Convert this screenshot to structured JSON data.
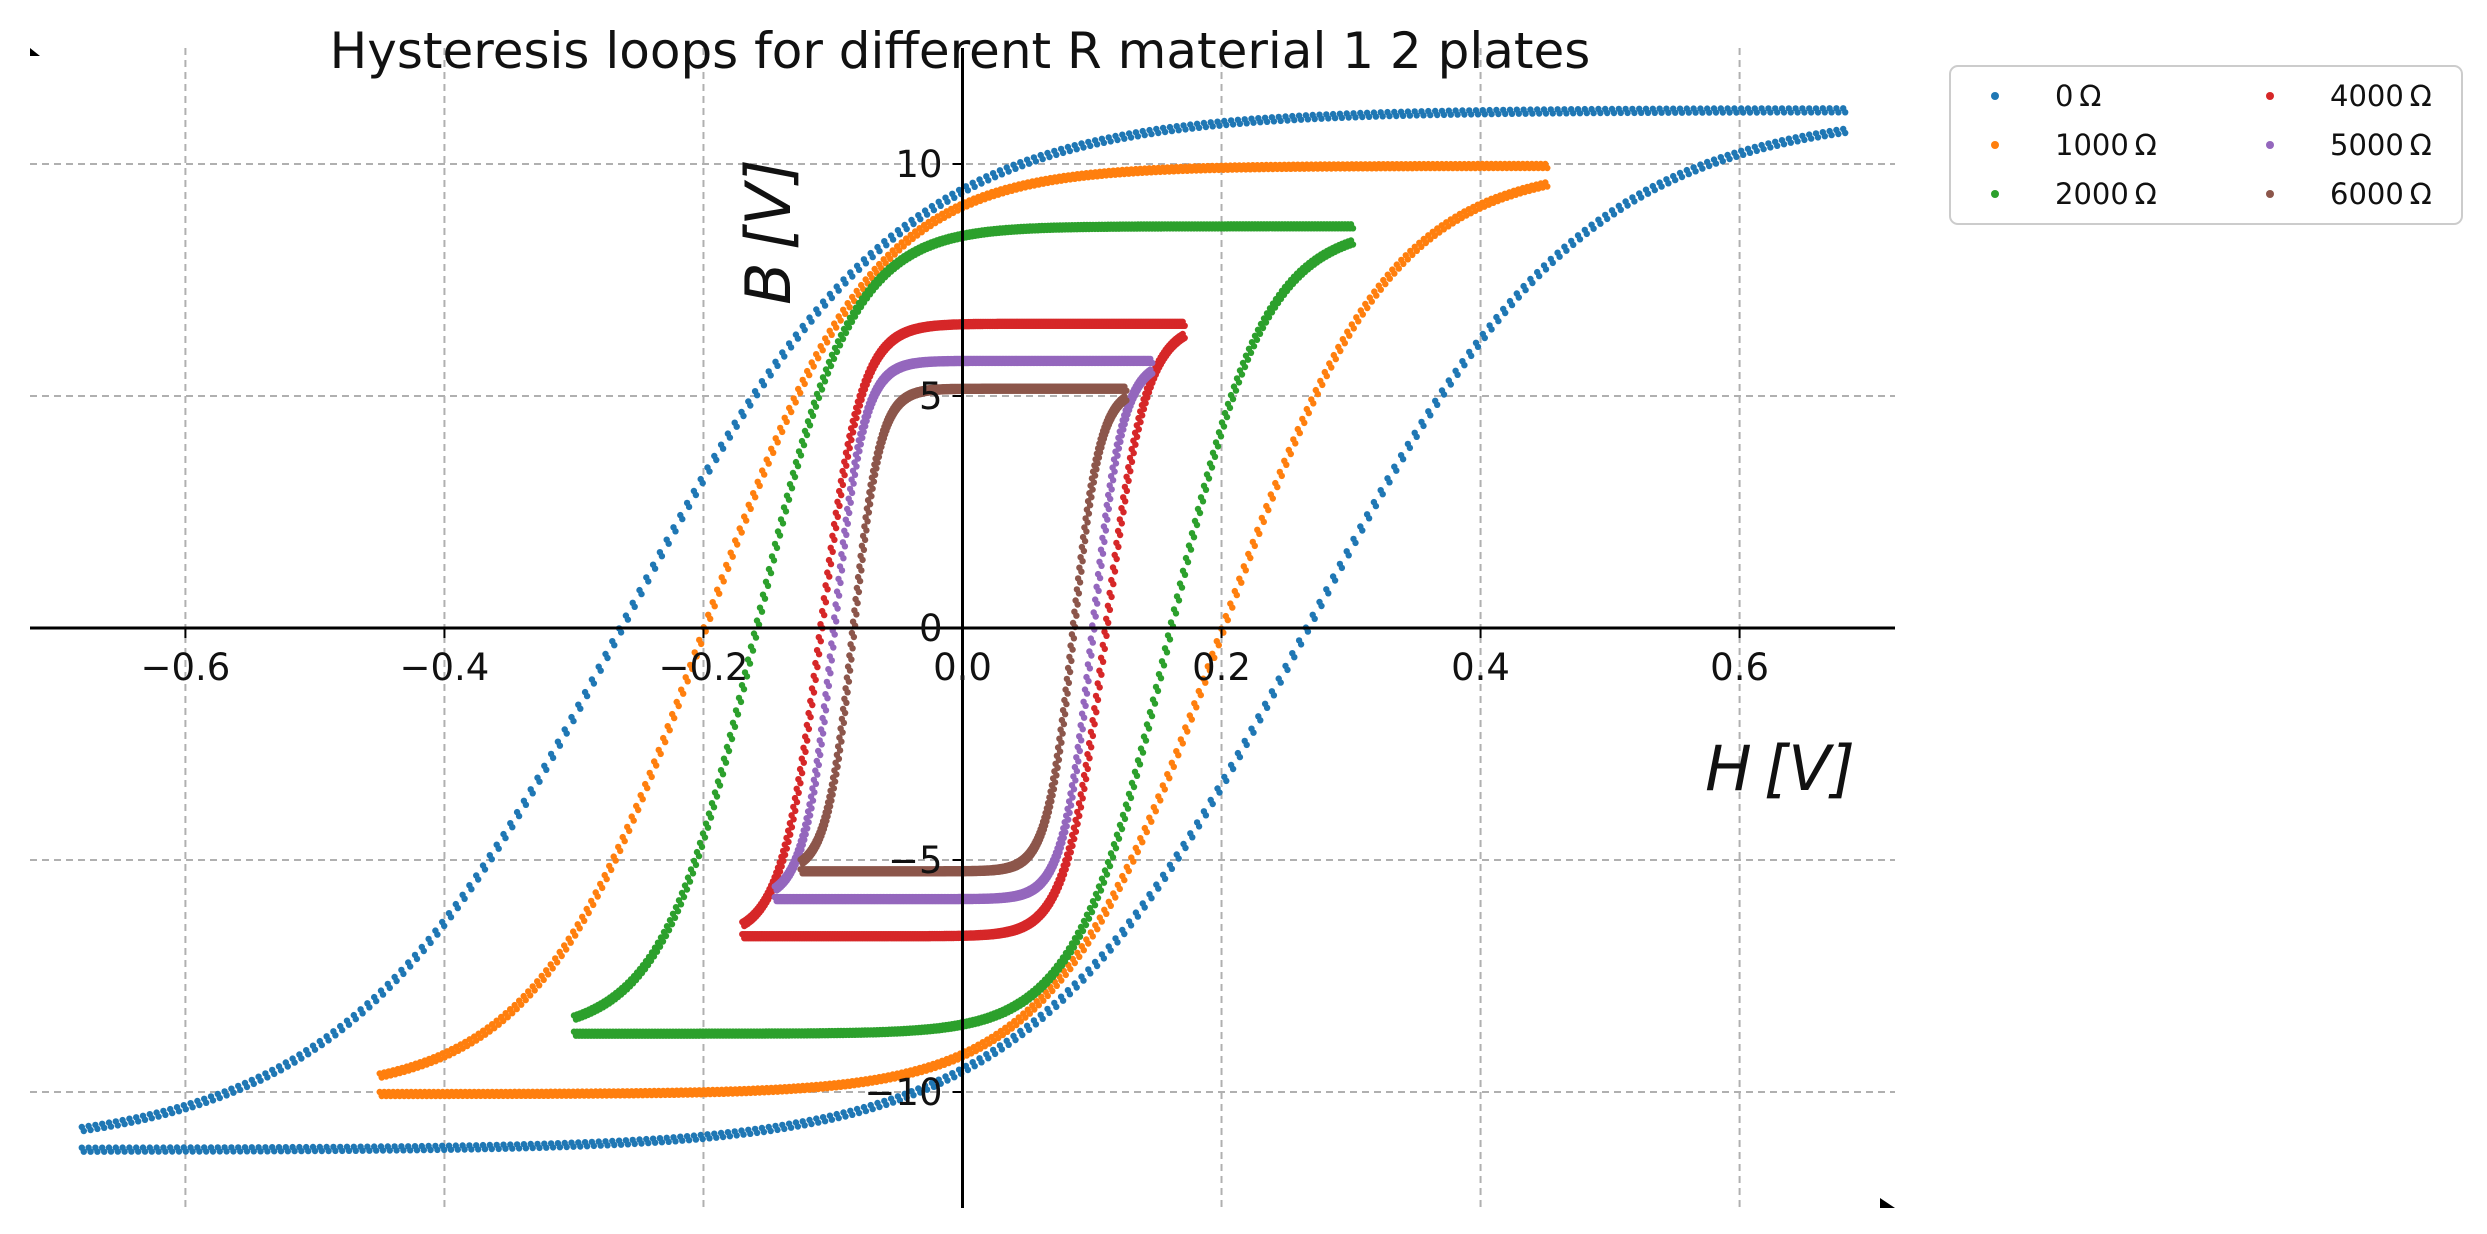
{
  "chart_data": {
    "type": "scatter",
    "title": "Hysteresis loops for different R material 1 2 plates",
    "xlabel": "H [V]",
    "ylabel": "B [V]",
    "xlim": [
      -0.72,
      0.72
    ],
    "ylim": [
      -12.5,
      12.5
    ],
    "xticks": [
      -0.6,
      -0.4,
      -0.2,
      0.0,
      0.2,
      0.4,
      0.6
    ],
    "xtick_labels": [
      "−0.6",
      "−0.4",
      "−0.2",
      "0.0",
      "0.2",
      "0.4",
      "0.6"
    ],
    "yticks": [
      -10,
      -5,
      0,
      5,
      10
    ],
    "ytick_labels": [
      "−10",
      "−5",
      "0",
      "5",
      "10"
    ],
    "grid": true,
    "legend_position": "outside-top-right",
    "legend_columns": 2,
    "series": [
      {
        "name": "0 Ω",
        "color": "#1f77b4",
        "Hmax": 0.68,
        "Bmax": 11.2,
        "coercivity": 0.265,
        "remanence": 7.6
      },
      {
        "name": "1000 Ω",
        "color": "#ff7f0e",
        "Hmax": 0.45,
        "Bmax": 10.0,
        "coercivity": 0.2,
        "remanence": 6.5
      },
      {
        "name": "2000 Ω",
        "color": "#2ca02c",
        "Hmax": 0.3,
        "Bmax": 8.7,
        "coercivity": 0.16,
        "remanence": 6.2
      },
      {
        "name": "4000 Ω",
        "color": "#d62728",
        "Hmax": 0.17,
        "Bmax": 6.6,
        "coercivity": 0.11,
        "remanence": 4.9
      },
      {
        "name": "5000 Ω",
        "color": "#9467bd",
        "Hmax": 0.145,
        "Bmax": 5.8,
        "coercivity": 0.1,
        "remanence": 4.5
      },
      {
        "name": "6000 Ω",
        "color": "#8c564b",
        "Hmax": 0.125,
        "Bmax": 5.2,
        "coercivity": 0.085,
        "remanence": 4.0
      }
    ]
  }
}
